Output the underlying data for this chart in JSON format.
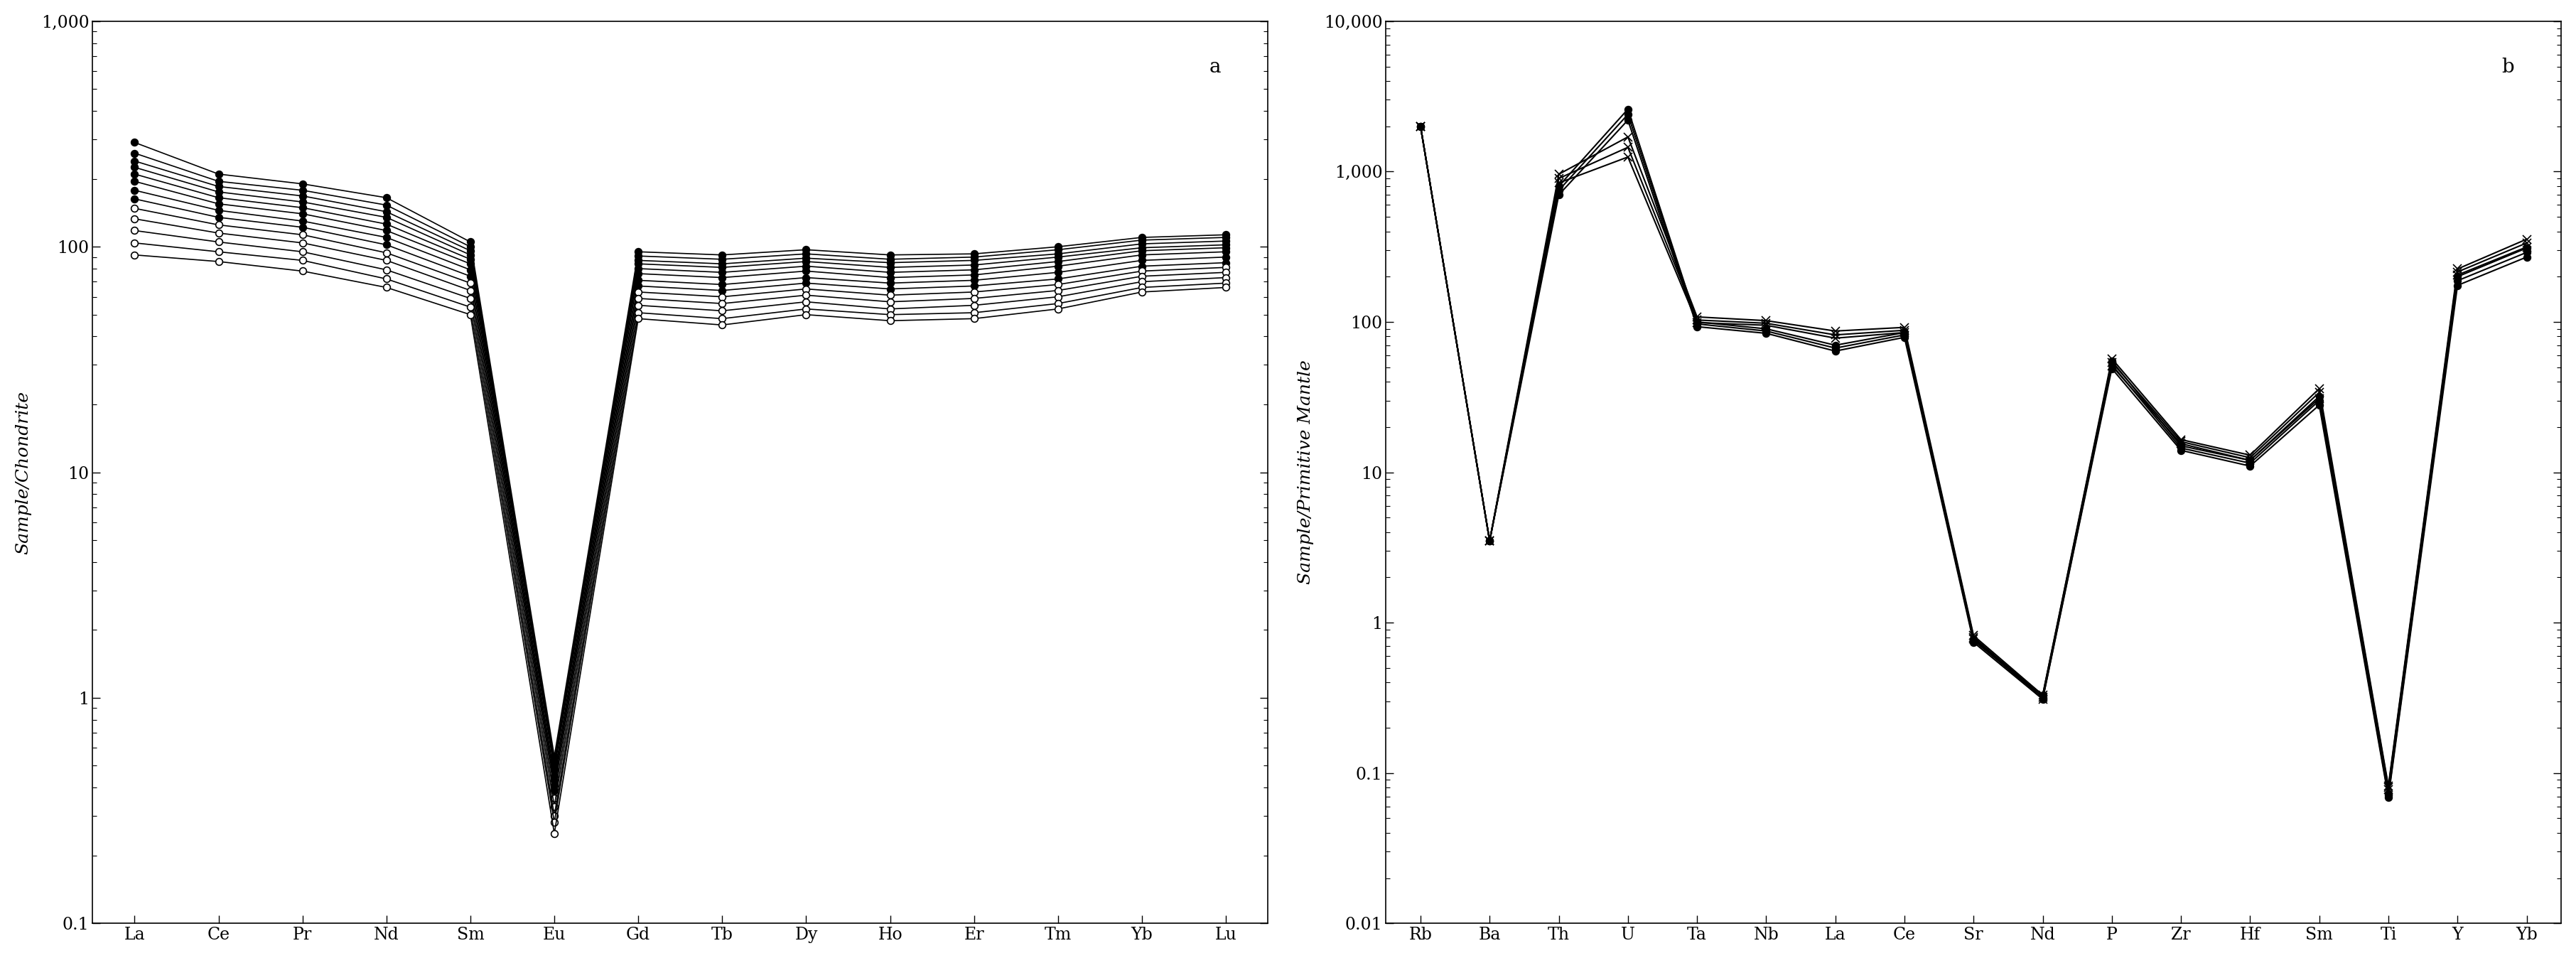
{
  "panel_a": {
    "xlabel_elements": [
      "La",
      "Ce",
      "Pr",
      "Nd",
      "Sm",
      "Eu",
      "Gd",
      "Tb",
      "Dy",
      "Ho",
      "Er",
      "Tm",
      "Yb",
      "Lu"
    ],
    "ylabel": "Sample/Chondrite",
    "label": "a",
    "ylim": [
      0.1,
      1000
    ],
    "series": [
      {
        "values": [
          290,
          210,
          190,
          165,
          105,
          0.55,
          95,
          92,
          97,
          92,
          93,
          100,
          110,
          113
        ],
        "filled": true
      },
      {
        "values": [
          260,
          195,
          178,
          153,
          100,
          0.52,
          91,
          88,
          93,
          88,
          90,
          97,
          107,
          110
        ],
        "filled": true
      },
      {
        "values": [
          240,
          185,
          168,
          143,
          96,
          0.5,
          87,
          84,
          89,
          85,
          87,
          93,
          103,
          106
        ],
        "filled": true
      },
      {
        "values": [
          225,
          175,
          158,
          135,
          92,
          0.48,
          84,
          81,
          86,
          81,
          83,
          90,
          99,
          102
        ],
        "filled": true
      },
      {
        "values": [
          210,
          165,
          149,
          126,
          88,
          0.45,
          80,
          77,
          82,
          77,
          79,
          86,
          96,
          99
        ],
        "filled": true
      },
      {
        "values": [
          195,
          155,
          140,
          118,
          84,
          0.43,
          76,
          73,
          78,
          73,
          75,
          82,
          92,
          95
        ],
        "filled": true
      },
      {
        "values": [
          178,
          145,
          130,
          110,
          79,
          0.41,
          71,
          68,
          73,
          69,
          71,
          77,
          87,
          90
        ],
        "filled": true
      },
      {
        "values": [
          163,
          135,
          122,
          102,
          74,
          0.39,
          67,
          64,
          69,
          65,
          67,
          72,
          82,
          85
        ],
        "filled": true
      },
      {
        "values": [
          148,
          125,
          113,
          94,
          69,
          0.36,
          63,
          60,
          65,
          61,
          63,
          68,
          78,
          81
        ],
        "filled": false
      },
      {
        "values": [
          133,
          115,
          104,
          87,
          64,
          0.33,
          59,
          56,
          61,
          57,
          59,
          64,
          74,
          77
        ],
        "filled": false
      },
      {
        "values": [
          118,
          105,
          95,
          79,
          59,
          0.3,
          55,
          52,
          57,
          53,
          55,
          60,
          70,
          73
        ],
        "filled": false
      },
      {
        "values": [
          104,
          95,
          87,
          72,
          54,
          0.28,
          51,
          48,
          53,
          50,
          51,
          56,
          66,
          69
        ],
        "filled": false
      },
      {
        "values": [
          92,
          86,
          78,
          66,
          50,
          0.25,
          48,
          45,
          50,
          47,
          48,
          53,
          63,
          66
        ],
        "filled": false
      }
    ]
  },
  "panel_b": {
    "xlabel_elements": [
      "Rb",
      "Ba",
      "Th",
      "U",
      "Ta",
      "Nb",
      "La",
      "Ce",
      "Sr",
      "Nd",
      "P",
      "Zr",
      "Hf",
      "Sm",
      "Ti",
      "Y",
      "Yb"
    ],
    "ylabel": "Sample/Primitive Mantle",
    "label": "b",
    "ylim": [
      0.01,
      10000
    ],
    "series": [
      {
        "values": [
          2000,
          3.5,
          800,
          2600,
          100,
          90,
          70,
          85,
          0.78,
          0.33,
          55,
          15,
          12,
          32,
          0.073,
          200,
          310
        ],
        "marker": "o",
        "filled": true
      },
      {
        "values": [
          2000,
          3.5,
          750,
          2400,
          97,
          87,
          67,
          82,
          0.76,
          0.32,
          52,
          14.5,
          11.5,
          30,
          0.071,
          188,
          290
        ],
        "marker": "o",
        "filled": true
      },
      {
        "values": [
          2000,
          3.5,
          700,
          2200,
          93,
          84,
          64,
          79,
          0.74,
          0.31,
          49,
          14,
          11,
          28,
          0.069,
          175,
          270
        ],
        "marker": "o",
        "filled": true
      },
      {
        "values": [
          2000,
          3.5,
          960,
          1700,
          108,
          102,
          87,
          92,
          0.82,
          0.33,
          57,
          16.5,
          13,
          36,
          0.082,
          225,
          355
        ],
        "marker": "x",
        "filled": false
      },
      {
        "values": [
          2000,
          3.5,
          900,
          1450,
          103,
          98,
          82,
          88,
          0.8,
          0.32,
          54,
          16,
          12.5,
          34,
          0.08,
          215,
          335
        ],
        "marker": "x",
        "filled": false
      },
      {
        "values": [
          2000,
          3.5,
          840,
          1250,
          99,
          95,
          78,
          85,
          0.78,
          0.31,
          51,
          15.5,
          12,
          31,
          0.078,
          205,
          315
        ],
        "marker": "x",
        "filled": false
      }
    ]
  },
  "figure_bg": "#ffffff",
  "line_color": "#000000",
  "fontsize_label": 18,
  "fontsize_tick": 17,
  "fontsize_panel_label": 20
}
